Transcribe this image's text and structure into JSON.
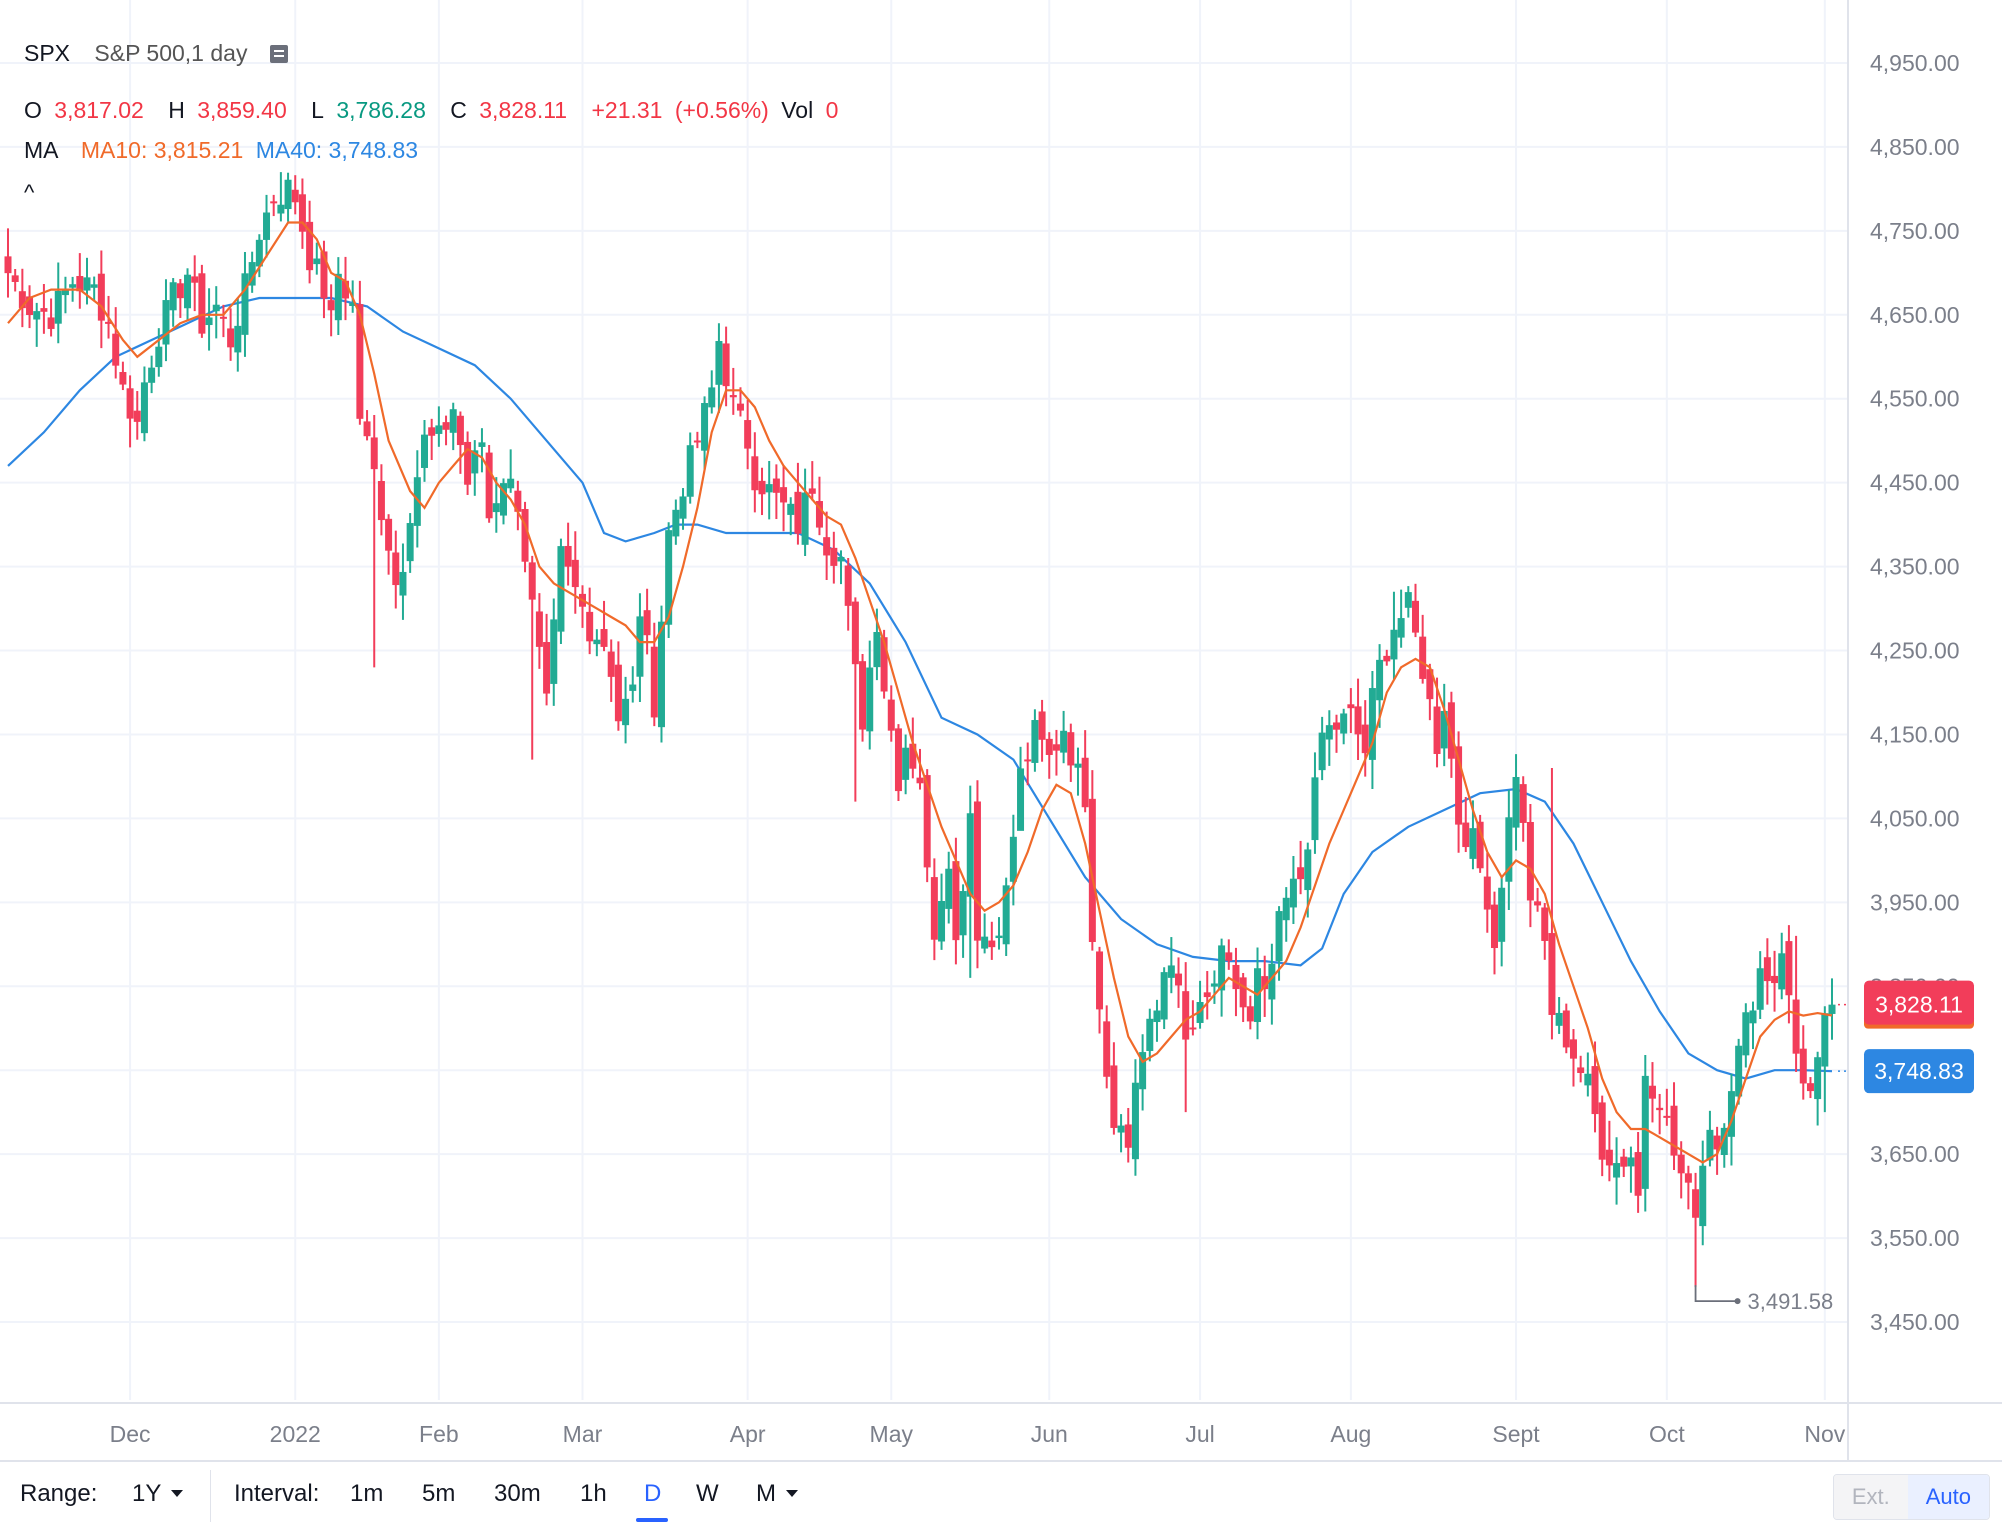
{
  "header": {
    "symbol": "SPX",
    "description": "S&P 500,1 day",
    "ohlc": {
      "o_label": "O",
      "o_value": "3,817.02",
      "h_label": "H",
      "h_value": "3,859.40",
      "l_label": "L",
      "l_value": "3,786.28",
      "c_label": "C",
      "c_value": "3,828.11",
      "change": "+21.31",
      "change_pct": "(+0.56%)",
      "vol_label": "Vol",
      "vol_value": "0"
    },
    "ma": {
      "label": "MA",
      "ma10_label": "MA10: 3,815.21",
      "ma40_label": "MA40: 3,748.83"
    },
    "collapse_symbol": "^"
  },
  "colors": {
    "up": "#22ab94",
    "down": "#f23d5a",
    "ma10": "#f06a2a",
    "ma40": "#2d87e2",
    "grid": "#f0f3fa",
    "axis_text": "#7b7f8a",
    "accent": "#2962ff"
  },
  "price_tags": {
    "last": "3,828.11",
    "ma40": "3,748.83",
    "low_marker": "3,491.58"
  },
  "chart_data": {
    "type": "candlestick",
    "yticks": [
      3450,
      3550,
      3650,
      3750,
      3850,
      3950,
      4050,
      4150,
      4250,
      4350,
      4450,
      4550,
      4650,
      4750,
      4850,
      4950
    ],
    "ytick_labels": [
      "3,450.00",
      "3,550.00",
      "3,650.00",
      "3,750.00",
      "3,850.00",
      "3,950.00",
      "4,050.00",
      "4,150.00",
      "4,250.00",
      "4,350.00",
      "4,450.00",
      "4,550.00",
      "4,650.00",
      "4,750.00",
      "4,850.00",
      "4,950.00"
    ],
    "ylim": [
      3390,
      5000
    ],
    "x_labels": [
      {
        "label": "Dec",
        "index": 17
      },
      {
        "label": "2022",
        "index": 40
      },
      {
        "label": "Feb",
        "index": 60
      },
      {
        "label": "Mar",
        "index": 80
      },
      {
        "label": "Apr",
        "index": 103
      },
      {
        "label": "May",
        "index": 123
      },
      {
        "label": "Jun",
        "index": 145
      },
      {
        "label": "Jul",
        "index": 166
      },
      {
        "label": "Aug",
        "index": 187
      },
      {
        "label": "Sept",
        "index": 210
      },
      {
        "label": "Oct",
        "index": 231
      },
      {
        "label": "Nov",
        "index": 253
      }
    ],
    "close_points": [
      [
        0,
        4700
      ],
      [
        3,
        4660
      ],
      [
        6,
        4650
      ],
      [
        9,
        4690
      ],
      [
        12,
        4680
      ],
      [
        14,
        4640
      ],
      [
        16,
        4560
      ],
      [
        18,
        4520
      ],
      [
        19,
        4570
      ],
      [
        21,
        4630
      ],
      [
        23,
        4670
      ],
      [
        25,
        4700
      ],
      [
        27,
        4640
      ],
      [
        29,
        4660
      ],
      [
        31,
        4620
      ],
      [
        33,
        4680
      ],
      [
        35,
        4750
      ],
      [
        37,
        4790
      ],
      [
        39,
        4800
      ],
      [
        40,
        4790
      ],
      [
        42,
        4720
      ],
      [
        44,
        4680
      ],
      [
        45,
        4640
      ],
      [
        46,
        4700
      ],
      [
        48,
        4660
      ],
      [
        49,
        4530
      ],
      [
        51,
        4460
      ],
      [
        53,
        4380
      ],
      [
        54,
        4330
      ],
      [
        55,
        4360
      ],
      [
        56,
        4420
      ],
      [
        58,
        4500
      ],
      [
        60,
        4500
      ],
      [
        62,
        4540
      ],
      [
        64,
        4450
      ],
      [
        66,
        4500
      ],
      [
        67,
        4410
      ],
      [
        69,
        4460
      ],
      [
        71,
        4430
      ],
      [
        73,
        4300
      ],
      [
        75,
        4180
      ],
      [
        77,
        4360
      ],
      [
        79,
        4320
      ],
      [
        81,
        4280
      ],
      [
        83,
        4260
      ],
      [
        84,
        4230
      ],
      [
        85,
        4170
      ],
      [
        87,
        4200
      ],
      [
        88,
        4300
      ],
      [
        89,
        4250
      ],
      [
        90,
        4190
      ],
      [
        92,
        4390
      ],
      [
        94,
        4450
      ],
      [
        96,
        4500
      ],
      [
        98,
        4560
      ],
      [
        99,
        4620
      ],
      [
        100,
        4580
      ],
      [
        101,
        4540
      ],
      [
        103,
        4500
      ],
      [
        104,
        4460
      ],
      [
        106,
        4440
      ],
      [
        108,
        4420
      ],
      [
        110,
        4400
      ],
      [
        112,
        4450
      ],
      [
        114,
        4380
      ],
      [
        116,
        4360
      ],
      [
        118,
        4220
      ],
      [
        119,
        4170
      ],
      [
        121,
        4290
      ],
      [
        122,
        4210
      ],
      [
        124,
        4100
      ],
      [
        125,
        4140
      ],
      [
        127,
        4100
      ],
      [
        128,
        3980
      ],
      [
        129,
        3920
      ],
      [
        131,
        4010
      ],
      [
        132,
        3900
      ],
      [
        134,
        4060
      ],
      [
        135,
        3920
      ],
      [
        137,
        3900
      ],
      [
        139,
        3960
      ],
      [
        141,
        4100
      ],
      [
        143,
        4150
      ],
      [
        145,
        4120
      ],
      [
        147,
        4160
      ],
      [
        149,
        4100
      ],
      [
        150,
        4080
      ],
      [
        151,
        3920
      ],
      [
        153,
        3750
      ],
      [
        154,
        3700
      ],
      [
        155,
        3680
      ],
      [
        156,
        3660
      ],
      [
        157,
        3740
      ],
      [
        158,
        3770
      ],
      [
        160,
        3820
      ],
      [
        161,
        3870
      ],
      [
        162,
        3890
      ],
      [
        164,
        3780
      ],
      [
        165,
        3800
      ],
      [
        167,
        3830
      ],
      [
        169,
        3880
      ],
      [
        171,
        3850
      ],
      [
        173,
        3800
      ],
      [
        174,
        3860
      ],
      [
        175,
        3830
      ],
      [
        177,
        3920
      ],
      [
        178,
        3950
      ],
      [
        180,
        3980
      ],
      [
        182,
        4080
      ],
      [
        183,
        4150
      ],
      [
        185,
        4160
      ],
      [
        187,
        4170
      ],
      [
        189,
        4130
      ],
      [
        190,
        4190
      ],
      [
        191,
        4230
      ],
      [
        193,
        4280
      ],
      [
        195,
        4300
      ],
      [
        197,
        4230
      ],
      [
        199,
        4140
      ],
      [
        200,
        4190
      ],
      [
        201,
        4120
      ],
      [
        202,
        4050
      ],
      [
        204,
        4020
      ],
      [
        206,
        3960
      ],
      [
        207,
        3900
      ],
      [
        208,
        3980
      ],
      [
        210,
        4110
      ],
      [
        212,
        3960
      ],
      [
        214,
        3900
      ],
      [
        215,
        3820
      ],
      [
        217,
        3790
      ],
      [
        218,
        3770
      ],
      [
        220,
        3730
      ],
      [
        222,
        3660
      ],
      [
        224,
        3640
      ],
      [
        226,
        3650
      ],
      [
        227,
        3600
      ],
      [
        228,
        3750
      ],
      [
        230,
        3720
      ],
      [
        232,
        3650
      ],
      [
        234,
        3600
      ],
      [
        235,
        3590
      ],
      [
        236,
        3640
      ],
      [
        237,
        3690
      ],
      [
        238,
        3660
      ],
      [
        240,
        3740
      ],
      [
        241,
        3770
      ],
      [
        243,
        3840
      ],
      [
        244,
        3870
      ],
      [
        246,
        3860
      ],
      [
        247,
        3900
      ],
      [
        248,
        3830
      ],
      [
        249,
        3770
      ],
      [
        251,
        3720
      ],
      [
        252,
        3750
      ],
      [
        253,
        3800
      ],
      [
        254,
        3828.11
      ]
    ],
    "low_points": [
      [
        51,
        4230
      ],
      [
        73,
        4120
      ],
      [
        90,
        4160
      ],
      [
        118,
        4070
      ],
      [
        134,
        3860
      ],
      [
        141,
        4100
      ],
      [
        156,
        3640
      ],
      [
        164,
        3700
      ],
      [
        227,
        3580
      ],
      [
        235,
        3491.58
      ],
      [
        253,
        3700
      ]
    ],
    "high_points": [
      [
        38,
        4820
      ],
      [
        99,
        4640
      ],
      [
        143,
        4180
      ],
      [
        193,
        4320
      ],
      [
        215,
        4110
      ],
      [
        249,
        3910
      ]
    ],
    "ma10_points": [
      [
        0,
        4640
      ],
      [
        3,
        4670
      ],
      [
        6,
        4680
      ],
      [
        10,
        4680
      ],
      [
        13,
        4660
      ],
      [
        16,
        4620
      ],
      [
        18,
        4600
      ],
      [
        21,
        4620
      ],
      [
        24,
        4640
      ],
      [
        27,
        4650
      ],
      [
        30,
        4650
      ],
      [
        33,
        4680
      ],
      [
        36,
        4720
      ],
      [
        39,
        4760
      ],
      [
        41,
        4760
      ],
      [
        43,
        4740
      ],
      [
        45,
        4700
      ],
      [
        47,
        4690
      ],
      [
        49,
        4650
      ],
      [
        51,
        4580
      ],
      [
        53,
        4500
      ],
      [
        56,
        4440
      ],
      [
        58,
        4420
      ],
      [
        60,
        4450
      ],
      [
        62,
        4470
      ],
      [
        64,
        4490
      ],
      [
        66,
        4480
      ],
      [
        68,
        4450
      ],
      [
        70,
        4430
      ],
      [
        72,
        4400
      ],
      [
        74,
        4350
      ],
      [
        76,
        4330
      ],
      [
        78,
        4320
      ],
      [
        80,
        4310
      ],
      [
        82,
        4300
      ],
      [
        84,
        4290
      ],
      [
        86,
        4280
      ],
      [
        88,
        4260
      ],
      [
        90,
        4260
      ],
      [
        92,
        4290
      ],
      [
        94,
        4350
      ],
      [
        96,
        4420
      ],
      [
        98,
        4510
      ],
      [
        100,
        4560
      ],
      [
        102,
        4560
      ],
      [
        104,
        4540
      ],
      [
        106,
        4500
      ],
      [
        108,
        4470
      ],
      [
        110,
        4450
      ],
      [
        112,
        4430
      ],
      [
        114,
        4410
      ],
      [
        116,
        4400
      ],
      [
        118,
        4360
      ],
      [
        120,
        4310
      ],
      [
        122,
        4260
      ],
      [
        124,
        4200
      ],
      [
        126,
        4140
      ],
      [
        128,
        4090
      ],
      [
        130,
        4040
      ],
      [
        132,
        4000
      ],
      [
        134,
        3960
      ],
      [
        136,
        3940
      ],
      [
        138,
        3950
      ],
      [
        140,
        3970
      ],
      [
        142,
        4010
      ],
      [
        144,
        4060
      ],
      [
        146,
        4090
      ],
      [
        148,
        4080
      ],
      [
        150,
        4020
      ],
      [
        152,
        3940
      ],
      [
        154,
        3860
      ],
      [
        156,
        3790
      ],
      [
        158,
        3760
      ],
      [
        160,
        3770
      ],
      [
        162,
        3790
      ],
      [
        164,
        3810
      ],
      [
        166,
        3820
      ],
      [
        168,
        3840
      ],
      [
        170,
        3860
      ],
      [
        172,
        3850
      ],
      [
        174,
        3840
      ],
      [
        176,
        3860
      ],
      [
        178,
        3880
      ],
      [
        180,
        3920
      ],
      [
        182,
        3970
      ],
      [
        184,
        4020
      ],
      [
        186,
        4060
      ],
      [
        188,
        4100
      ],
      [
        190,
        4140
      ],
      [
        192,
        4200
      ],
      [
        194,
        4230
      ],
      [
        196,
        4240
      ],
      [
        198,
        4230
      ],
      [
        200,
        4180
      ],
      [
        202,
        4120
      ],
      [
        204,
        4060
      ],
      [
        206,
        4010
      ],
      [
        208,
        3980
      ],
      [
        210,
        4000
      ],
      [
        212,
        3990
      ],
      [
        214,
        3960
      ],
      [
        216,
        3900
      ],
      [
        218,
        3850
      ],
      [
        220,
        3800
      ],
      [
        222,
        3740
      ],
      [
        224,
        3700
      ],
      [
        226,
        3680
      ],
      [
        228,
        3680
      ],
      [
        230,
        3670
      ],
      [
        232,
        3660
      ],
      [
        234,
        3650
      ],
      [
        236,
        3640
      ],
      [
        238,
        3650
      ],
      [
        240,
        3690
      ],
      [
        242,
        3740
      ],
      [
        244,
        3790
      ],
      [
        246,
        3810
      ],
      [
        248,
        3820
      ],
      [
        250,
        3815
      ],
      [
        252,
        3818
      ],
      [
        254,
        3815.21
      ]
    ],
    "ma40_points": [
      [
        0,
        4470
      ],
      [
        5,
        4510
      ],
      [
        10,
        4560
      ],
      [
        15,
        4600
      ],
      [
        20,
        4620
      ],
      [
        25,
        4640
      ],
      [
        30,
        4660
      ],
      [
        35,
        4670
      ],
      [
        40,
        4670
      ],
      [
        45,
        4670
      ],
      [
        50,
        4660
      ],
      [
        55,
        4630
      ],
      [
        60,
        4610
      ],
      [
        65,
        4590
      ],
      [
        70,
        4550
      ],
      [
        75,
        4500
      ],
      [
        80,
        4450
      ],
      [
        83,
        4390
      ],
      [
        86,
        4380
      ],
      [
        90,
        4390
      ],
      [
        93,
        4400
      ],
      [
        96,
        4400
      ],
      [
        100,
        4390
      ],
      [
        105,
        4390
      ],
      [
        110,
        4390
      ],
      [
        115,
        4370
      ],
      [
        120,
        4330
      ],
      [
        125,
        4260
      ],
      [
        130,
        4170
      ],
      [
        135,
        4150
      ],
      [
        140,
        4120
      ],
      [
        145,
        4050
      ],
      [
        150,
        3980
      ],
      [
        155,
        3930
      ],
      [
        160,
        3900
      ],
      [
        165,
        3885
      ],
      [
        170,
        3880
      ],
      [
        175,
        3880
      ],
      [
        180,
        3875
      ],
      [
        183,
        3895
      ],
      [
        186,
        3960
      ],
      [
        190,
        4010
      ],
      [
        195,
        4040
      ],
      [
        200,
        4060
      ],
      [
        205,
        4080
      ],
      [
        210,
        4085
      ],
      [
        214,
        4070
      ],
      [
        218,
        4020
      ],
      [
        222,
        3950
      ],
      [
        226,
        3880
      ],
      [
        230,
        3820
      ],
      [
        234,
        3770
      ],
      [
        238,
        3750
      ],
      [
        242,
        3740
      ],
      [
        246,
        3750
      ],
      [
        250,
        3750
      ],
      [
        254,
        3748.83
      ]
    ]
  },
  "toolbar": {
    "range_label": "Range:",
    "range_value": "1Y",
    "interval_label": "Interval:",
    "intervals": [
      "1m",
      "5m",
      "30m",
      "1h",
      "D",
      "W",
      "M"
    ],
    "active_interval": "D",
    "ext_label": "Ext.",
    "auto_label": "Auto"
  }
}
